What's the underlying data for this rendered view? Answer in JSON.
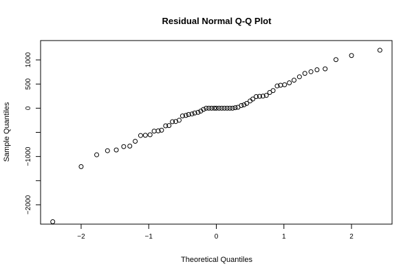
{
  "chart_data": {
    "type": "scatter",
    "title": "Residual Normal Q-Q Plot",
    "xlabel": "Theoretical Quantiles",
    "ylabel": "Sample Quantiles",
    "xlim": [
      -2.6,
      2.6
    ],
    "ylim": [
      -2400,
      1400
    ],
    "grid": false,
    "legend": "none",
    "x_ticks": [
      -2,
      -1,
      0,
      1,
      2
    ],
    "x_tick_labels": [
      "−2",
      "−1",
      "0",
      "1",
      "2"
    ],
    "y_ticks": [
      -2000,
      -1500,
      -1000,
      -500,
      0,
      500,
      1000
    ],
    "y_tick_labels": [
      "−2000",
      "",
      "−1000",
      "",
      "0",
      "500",
      "1000"
    ],
    "marker": "open-circle",
    "points": [
      {
        "x": -2.42,
        "y": -2350
      },
      {
        "x": -2.0,
        "y": -1210
      },
      {
        "x": -1.77,
        "y": -965
      },
      {
        "x": -1.61,
        "y": -880
      },
      {
        "x": -1.48,
        "y": -865
      },
      {
        "x": -1.37,
        "y": -795
      },
      {
        "x": -1.28,
        "y": -785
      },
      {
        "x": -1.2,
        "y": -685
      },
      {
        "x": -1.12,
        "y": -565
      },
      {
        "x": -1.05,
        "y": -560
      },
      {
        "x": -0.98,
        "y": -550
      },
      {
        "x": -0.92,
        "y": -475
      },
      {
        "x": -0.86,
        "y": -470
      },
      {
        "x": -0.81,
        "y": -455
      },
      {
        "x": -0.75,
        "y": -365
      },
      {
        "x": -0.7,
        "y": -360
      },
      {
        "x": -0.65,
        "y": -280
      },
      {
        "x": -0.6,
        "y": -275
      },
      {
        "x": -0.55,
        "y": -250
      },
      {
        "x": -0.5,
        "y": -160
      },
      {
        "x": -0.45,
        "y": -150
      },
      {
        "x": -0.41,
        "y": -130
      },
      {
        "x": -0.36,
        "y": -120
      },
      {
        "x": -0.32,
        "y": -100
      },
      {
        "x": -0.27,
        "y": -85
      },
      {
        "x": -0.23,
        "y": -60
      },
      {
        "x": -0.19,
        "y": -25
      },
      {
        "x": -0.15,
        "y": 0
      },
      {
        "x": -0.11,
        "y": 0
      },
      {
        "x": -0.07,
        "y": 0
      },
      {
        "x": -0.03,
        "y": 0
      },
      {
        "x": 0.0,
        "y": 0
      },
      {
        "x": 0.04,
        "y": 0
      },
      {
        "x": 0.08,
        "y": 0
      },
      {
        "x": 0.12,
        "y": 0
      },
      {
        "x": 0.16,
        "y": 0
      },
      {
        "x": 0.2,
        "y": 0
      },
      {
        "x": 0.24,
        "y": 0
      },
      {
        "x": 0.28,
        "y": 10
      },
      {
        "x": 0.32,
        "y": 20
      },
      {
        "x": 0.37,
        "y": 55
      },
      {
        "x": 0.41,
        "y": 70
      },
      {
        "x": 0.45,
        "y": 100
      },
      {
        "x": 0.5,
        "y": 150
      },
      {
        "x": 0.54,
        "y": 190
      },
      {
        "x": 0.59,
        "y": 240
      },
      {
        "x": 0.64,
        "y": 245
      },
      {
        "x": 0.69,
        "y": 250
      },
      {
        "x": 0.74,
        "y": 265
      },
      {
        "x": 0.79,
        "y": 325
      },
      {
        "x": 0.84,
        "y": 365
      },
      {
        "x": 0.9,
        "y": 460
      },
      {
        "x": 0.95,
        "y": 475
      },
      {
        "x": 1.01,
        "y": 485
      },
      {
        "x": 1.08,
        "y": 525
      },
      {
        "x": 1.15,
        "y": 580
      },
      {
        "x": 1.23,
        "y": 650
      },
      {
        "x": 1.31,
        "y": 720
      },
      {
        "x": 1.4,
        "y": 755
      },
      {
        "x": 1.49,
        "y": 795
      },
      {
        "x": 1.61,
        "y": 815
      },
      {
        "x": 1.77,
        "y": 1005
      },
      {
        "x": 2.0,
        "y": 1090
      },
      {
        "x": 2.42,
        "y": 1200
      }
    ]
  }
}
